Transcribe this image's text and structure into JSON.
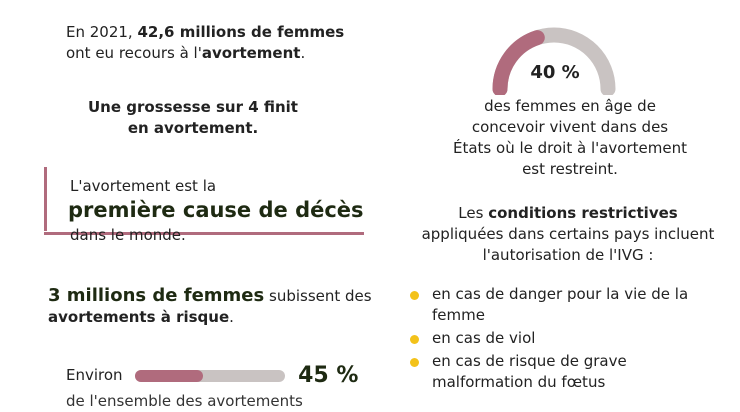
{
  "left": {
    "stat_abortions": {
      "prefix": "En 2021, ",
      "highlight": "42,6 millions de femmes",
      "middle": "ont eu recours à l'",
      "keyword": "avortement",
      "suffix": "."
    },
    "stat_pregnancy": "Une grossesse sur 4 finit en avortement.",
    "callout": {
      "line1": "L'avortement est la",
      "big": "première cause de décès",
      "line3": "dans le monde."
    },
    "stat_risk": {
      "highlight": "3 millions de femmes",
      "middle": " subissent des ",
      "keyword": "avortements à risque",
      "suffix": "."
    },
    "stat_share": {
      "prefix": "Environ",
      "percent_label": "45 %",
      "percent_value": 45,
      "continuation": "de l'ensemble des avortements"
    }
  },
  "right": {
    "gauge": {
      "percent_label": "40 %",
      "percent_value": 40
    },
    "gauge_description": "des femmes en âge de concevoir vivent dans des États où le droit à l'avortement est restreint.",
    "conditions": {
      "prefix": "Les ",
      "keyword": "conditions restrictives",
      "suffix": " appliquées dans certains pays incluent l'autorisation de l'IVG :"
    },
    "bullets": [
      "en cas de danger pour la vie de la femme",
      "en cas de viol",
      "en cas de risque de grave malformation du fœtus"
    ]
  },
  "colors": {
    "accent": "#b06b7d",
    "track": "#c9c3c2",
    "dark_green": "#1e2a12",
    "bullet": "#f3c21a"
  }
}
